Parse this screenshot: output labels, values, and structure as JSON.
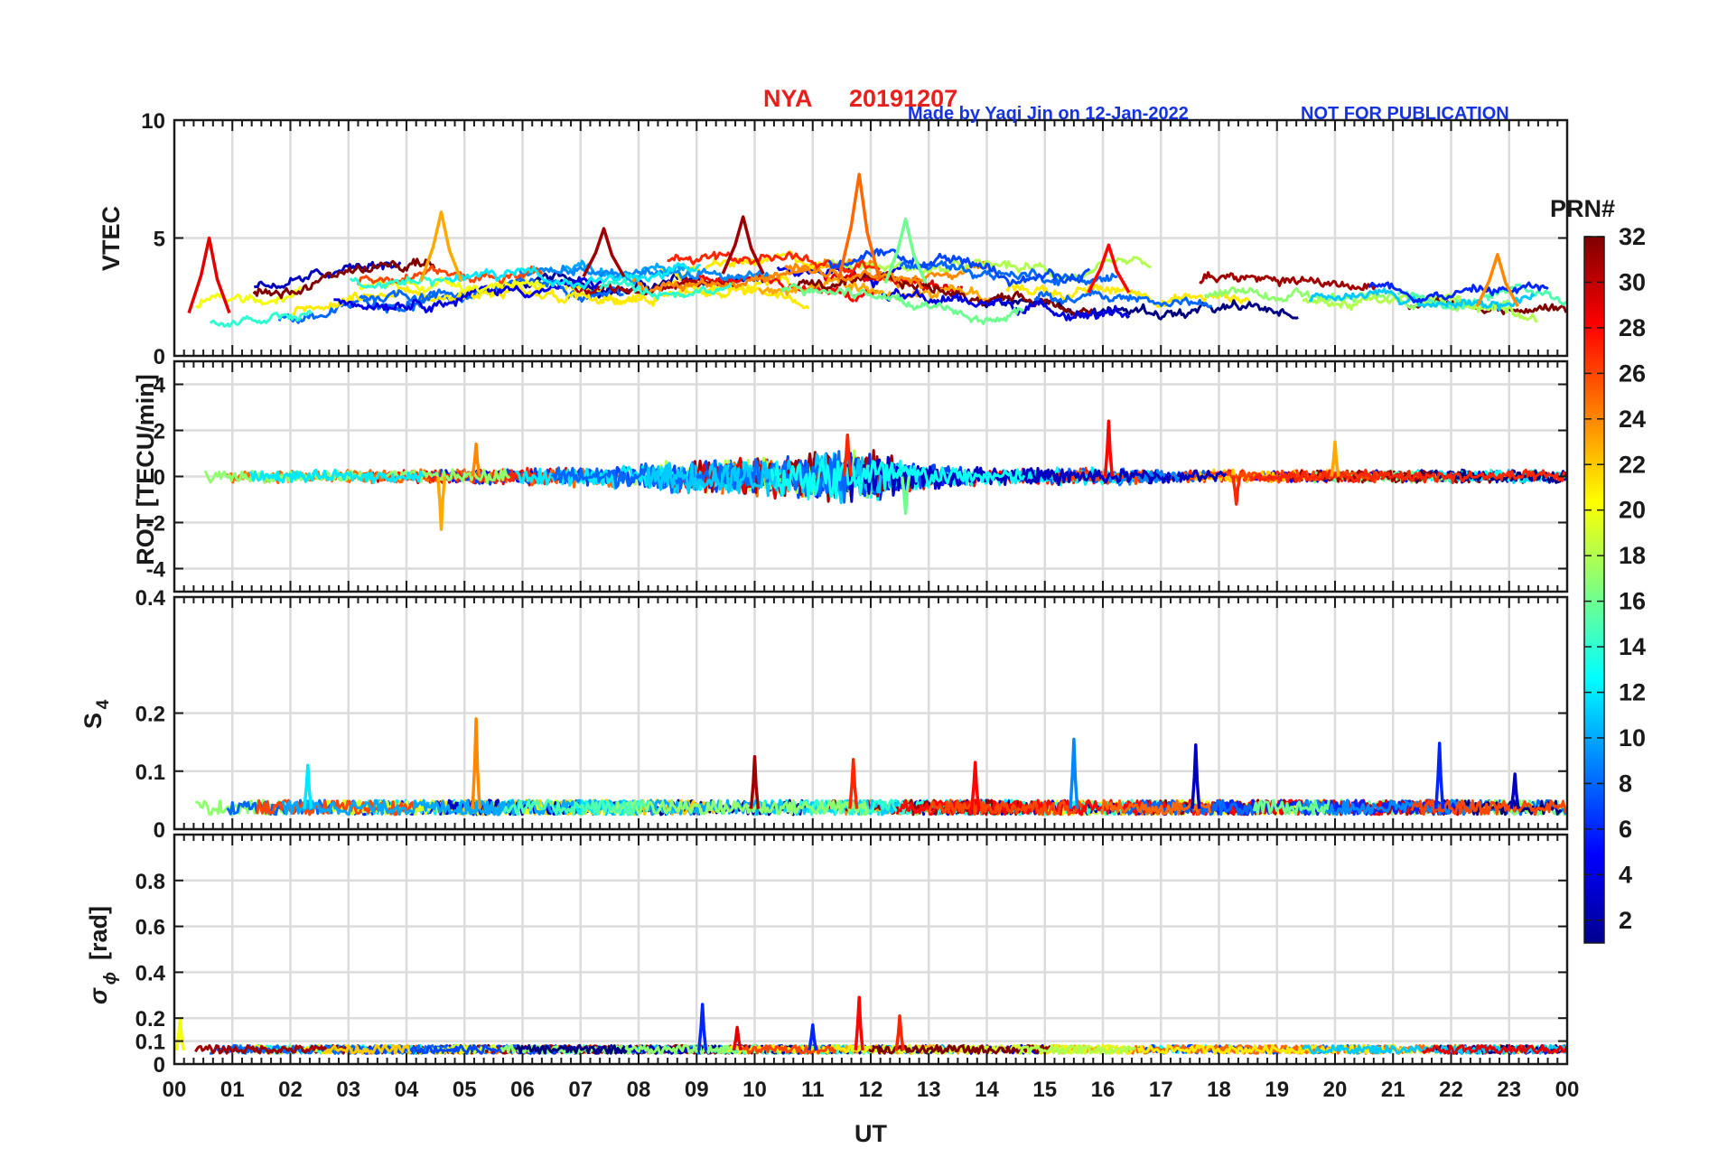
{
  "header": {
    "title_station": "NYA",
    "title_date": "20191207",
    "credit": "Made by Yaqi Jin on 12-Jan-2022",
    "notice": "NOT FOR PUBLICATION"
  },
  "colors": {
    "title": "#e8201c",
    "credit": "#1533e0",
    "grid": "#dcdcdc",
    "axis": "#1a1a1a"
  },
  "chart_data": [
    {
      "type": "line",
      "panel": "vtec",
      "ylabel": "VTEC",
      "ylim": [
        0,
        10
      ],
      "yticks": [
        0,
        5,
        10
      ],
      "ytick_labels": [
        "0",
        "5",
        "10"
      ],
      "xlim": [
        0,
        24
      ],
      "grid": true,
      "series_note": "traces per satellite PRN, colored by PRN number",
      "baseline": [
        [
          0,
          1.7
        ],
        [
          1,
          1.9
        ],
        [
          2,
          2.4
        ],
        [
          3,
          2.8
        ],
        [
          4,
          3.1
        ],
        [
          5,
          3.2
        ],
        [
          6,
          3.3
        ],
        [
          7,
          3.4
        ],
        [
          8,
          3.3
        ],
        [
          9,
          3.4
        ],
        [
          10,
          3.5
        ],
        [
          11,
          3.4
        ],
        [
          12,
          3.2
        ],
        [
          13,
          3.0
        ],
        [
          14,
          2.9
        ],
        [
          15,
          2.8
        ],
        [
          16,
          2.7
        ],
        [
          17,
          2.6
        ],
        [
          18,
          2.5
        ],
        [
          19,
          2.4
        ],
        [
          20,
          2.3
        ],
        [
          21,
          2.2
        ],
        [
          22,
          2.1
        ],
        [
          23,
          2.1
        ],
        [
          24,
          2.1
        ]
      ],
      "peaks": [
        {
          "x": 0.6,
          "y": 5.0,
          "prn": 29
        },
        {
          "x": 4.6,
          "y": 6.1,
          "prn": 23
        },
        {
          "x": 7.4,
          "y": 5.4,
          "prn": 31
        },
        {
          "x": 9.8,
          "y": 5.9,
          "prn": 31
        },
        {
          "x": 11.8,
          "y": 7.7,
          "prn": 25
        },
        {
          "x": 12.6,
          "y": 5.8,
          "prn": 16
        },
        {
          "x": 16.1,
          "y": 4.7,
          "prn": 28
        },
        {
          "x": 22.8,
          "y": 4.3,
          "prn": 24
        }
      ]
    },
    {
      "type": "line",
      "panel": "rot",
      "ylabel": "ROT [TECU/min]",
      "ylim": [
        -5,
        5
      ],
      "yticks": [
        -4,
        -2,
        0,
        2,
        4
      ],
      "ytick_labels": [
        "-4",
        "-2",
        "0",
        "2",
        "4"
      ],
      "xlim": [
        0,
        24
      ],
      "grid": true,
      "baseline": [
        [
          0,
          0
        ],
        [
          24,
          0
        ]
      ],
      "noise_envelope": [
        [
          0,
          0.3
        ],
        [
          4,
          0.3
        ],
        [
          6,
          0.4
        ],
        [
          8,
          0.6
        ],
        [
          9,
          0.8
        ],
        [
          10,
          0.9
        ],
        [
          11,
          1.2
        ],
        [
          12,
          1.3
        ],
        [
          13,
          0.6
        ],
        [
          14,
          0.4
        ],
        [
          16,
          0.4
        ],
        [
          18,
          0.3
        ],
        [
          24,
          0.3
        ]
      ],
      "peaks": [
        {
          "x": 4.6,
          "y": -2.3,
          "prn": 23
        },
        {
          "x": 5.2,
          "y": 1.4,
          "prn": 24
        },
        {
          "x": 11.6,
          "y": 1.8,
          "prn": 27
        },
        {
          "x": 12.6,
          "y": -1.6,
          "prn": 16
        },
        {
          "x": 16.1,
          "y": 2.4,
          "prn": 28
        },
        {
          "x": 18.3,
          "y": -1.2,
          "prn": 27
        },
        {
          "x": 20.0,
          "y": 1.5,
          "prn": 23
        }
      ]
    },
    {
      "type": "line",
      "panel": "s4",
      "ylabel": "S4",
      "ylabel_main": "S",
      "ylabel_sub": "4",
      "ylim": [
        0,
        0.4
      ],
      "yticks": [
        0,
        0.1,
        0.2,
        0.4
      ],
      "ytick_labels": [
        "0",
        "0.1",
        "0.2",
        "0.4"
      ],
      "xlim": [
        0,
        24
      ],
      "grid": true,
      "baseline": [
        [
          0,
          0.035
        ],
        [
          24,
          0.035
        ]
      ],
      "peaks": [
        {
          "x": 2.3,
          "y": 0.11,
          "prn": 12
        },
        {
          "x": 5.2,
          "y": 0.19,
          "prn": 24
        },
        {
          "x": 10.0,
          "y": 0.125,
          "prn": 31
        },
        {
          "x": 11.7,
          "y": 0.12,
          "prn": 27
        },
        {
          "x": 13.8,
          "y": 0.115,
          "prn": 28
        },
        {
          "x": 15.5,
          "y": 0.155,
          "prn": 9
        },
        {
          "x": 17.6,
          "y": 0.145,
          "prn": 3
        },
        {
          "x": 21.8,
          "y": 0.148,
          "prn": 6
        },
        {
          "x": 23.1,
          "y": 0.095,
          "prn": 3
        }
      ]
    },
    {
      "type": "line",
      "panel": "sigma_phi",
      "ylabel": "σϕ [rad]",
      "ylabel_main": "σ",
      "ylabel_sub": "ϕ",
      "ylabel_unit": "[rad]",
      "ylim": [
        0,
        1
      ],
      "yticks": [
        0,
        0.1,
        0.2,
        0.4,
        0.6,
        0.8
      ],
      "ytick_labels": [
        "0",
        "0.1",
        "0.2",
        "0.4",
        "0.6",
        "0.8"
      ],
      "xlim": [
        0,
        24
      ],
      "grid": true,
      "baseline": [
        [
          0,
          0.06
        ],
        [
          24,
          0.06
        ]
      ],
      "peaks": [
        {
          "x": 0.1,
          "y": 0.2,
          "prn": 20
        },
        {
          "x": 9.1,
          "y": 0.26,
          "prn": 6
        },
        {
          "x": 9.7,
          "y": 0.16,
          "prn": 29
        },
        {
          "x": 11.8,
          "y": 0.29,
          "prn": 28
        },
        {
          "x": 12.5,
          "y": 0.21,
          "prn": 27
        },
        {
          "x": 11.0,
          "y": 0.17,
          "prn": 6
        }
      ],
      "xlabel": "UT",
      "xtick_labels": [
        "00",
        "01",
        "02",
        "03",
        "04",
        "05",
        "06",
        "07",
        "08",
        "09",
        "10",
        "11",
        "12",
        "13",
        "14",
        "15",
        "16",
        "17",
        "18",
        "19",
        "20",
        "21",
        "22",
        "23",
        "00"
      ]
    }
  ],
  "colorbar": {
    "label": "PRN#",
    "range": [
      1,
      32
    ],
    "ticks": [
      2,
      4,
      6,
      8,
      10,
      12,
      14,
      16,
      18,
      20,
      22,
      24,
      26,
      28,
      30,
      32
    ],
    "tick_labels": [
      "2",
      "4",
      "6",
      "8",
      "10",
      "12",
      "14",
      "16",
      "18",
      "20",
      "22",
      "24",
      "26",
      "28",
      "30",
      "32"
    ],
    "colormap": "jet"
  }
}
